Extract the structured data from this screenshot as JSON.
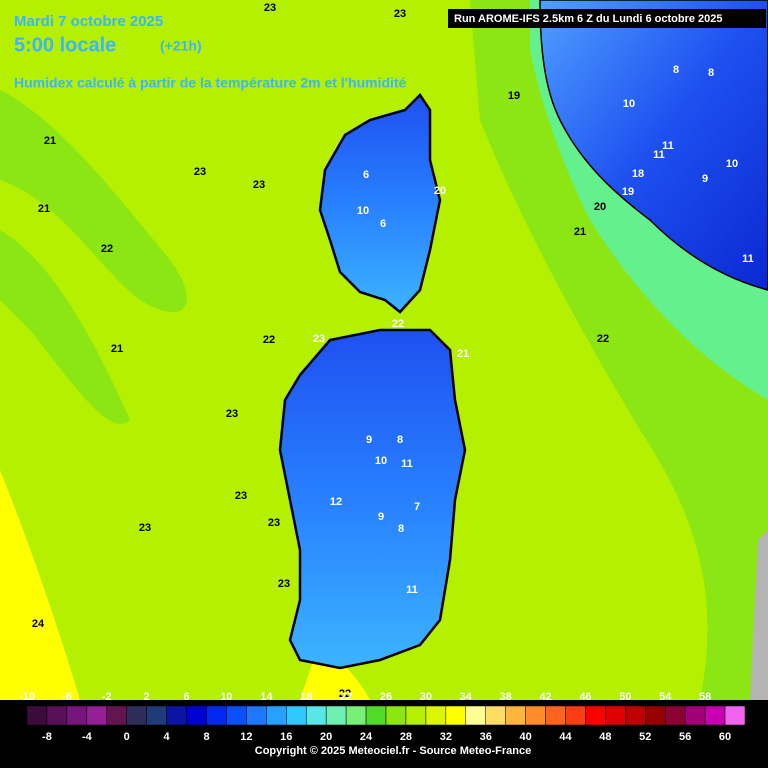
{
  "header": {
    "date": "Mardi 7 octobre 2025",
    "time": "5:00 locale",
    "offset": "(+21h)",
    "parameter": "Humidex calculé à partir de la température 2m et l'humidité",
    "run": "Run AROME-IFS 2.5km 6 Z du Lundi 6 octobre 2025"
  },
  "contour_labels": [
    23,
    23,
    21,
    23,
    21,
    23,
    22,
    21,
    22,
    23,
    23,
    23,
    23,
    23,
    23,
    24,
    6,
    6,
    10,
    20,
    22,
    21,
    9,
    8,
    10,
    11,
    7,
    9,
    8,
    11,
    12,
    22,
    10,
    8,
    8,
    11,
    11,
    10,
    9,
    19,
    20,
    21,
    22,
    11,
    18,
    19
  ],
  "colorbar": {
    "levels": [
      -10,
      -8,
      -6,
      -4,
      -2,
      0,
      2,
      4,
      6,
      8,
      10,
      12,
      14,
      16,
      18,
      20,
      22,
      24,
      26,
      28,
      30,
      32,
      34,
      36,
      38,
      40,
      42,
      44,
      46,
      48,
      50,
      52,
      54,
      56,
      58,
      60
    ],
    "colors": [
      "#3c0b3c",
      "#5a0f5a",
      "#78147d",
      "#961e96",
      "#641450",
      "#2d2d5a",
      "#1e3c78",
      "#0a14a0",
      "#0000d2",
      "#0028f0",
      "#0a50ff",
      "#1e78ff",
      "#28a0ff",
      "#32c8ff",
      "#5ae6e6",
      "#6ef0b4",
      "#78f078",
      "#50dc28",
      "#8ce614",
      "#b4f000",
      "#dcf500",
      "#ffff00",
      "#ffff96",
      "#ffdc64",
      "#ffb43c",
      "#ff8c28",
      "#ff641e",
      "#ff3c14",
      "#ff0000",
      "#e10000",
      "#be0000",
      "#960000",
      "#8c0032",
      "#a00078",
      "#c800b4",
      "#f064f0"
    ]
  },
  "footer": {
    "copyright": "Copyright © 2025 Meteociel.fr - Source Meteo-France"
  }
}
